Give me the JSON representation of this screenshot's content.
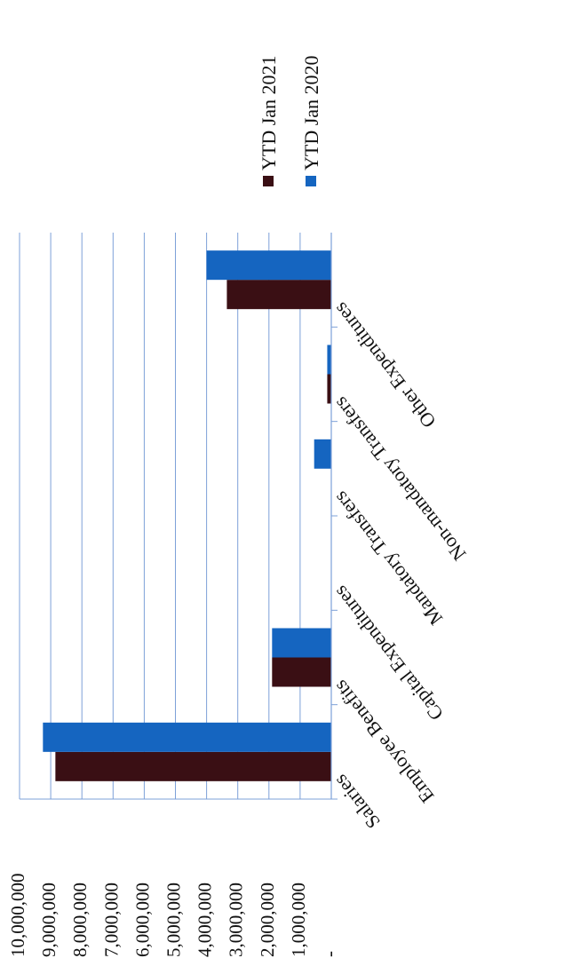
{
  "chart_data": {
    "type": "bar",
    "orientation": "rotated",
    "title": "",
    "xlabel": "",
    "ylabel": "",
    "categories": [
      "Salaries",
      "Employee Benefits",
      "Capital Expenditures",
      "Mandatory Transfers",
      "Non-mandatory Transfers",
      "Other Expenditures"
    ],
    "series": [
      {
        "name": "YTD Jan 2021",
        "color": "#3a0f14",
        "values": [
          8850000,
          1900000,
          0,
          0,
          130000,
          3350000
        ]
      },
      {
        "name": "YTD Jan 2020",
        "color": "#1565c0",
        "values": [
          9250000,
          1900000,
          0,
          550000,
          130000,
          4000000
        ]
      }
    ],
    "ylim": [
      0,
      10000000
    ],
    "yticks": [
      "-",
      "1,000,000",
      "2,000,000",
      "3,000,000",
      "4,000,000",
      "5,000,000",
      "6,000,000",
      "7,000,000",
      "8,000,000",
      "9,000,000",
      "10,000,000"
    ],
    "grid": true,
    "legend_position": "top"
  }
}
